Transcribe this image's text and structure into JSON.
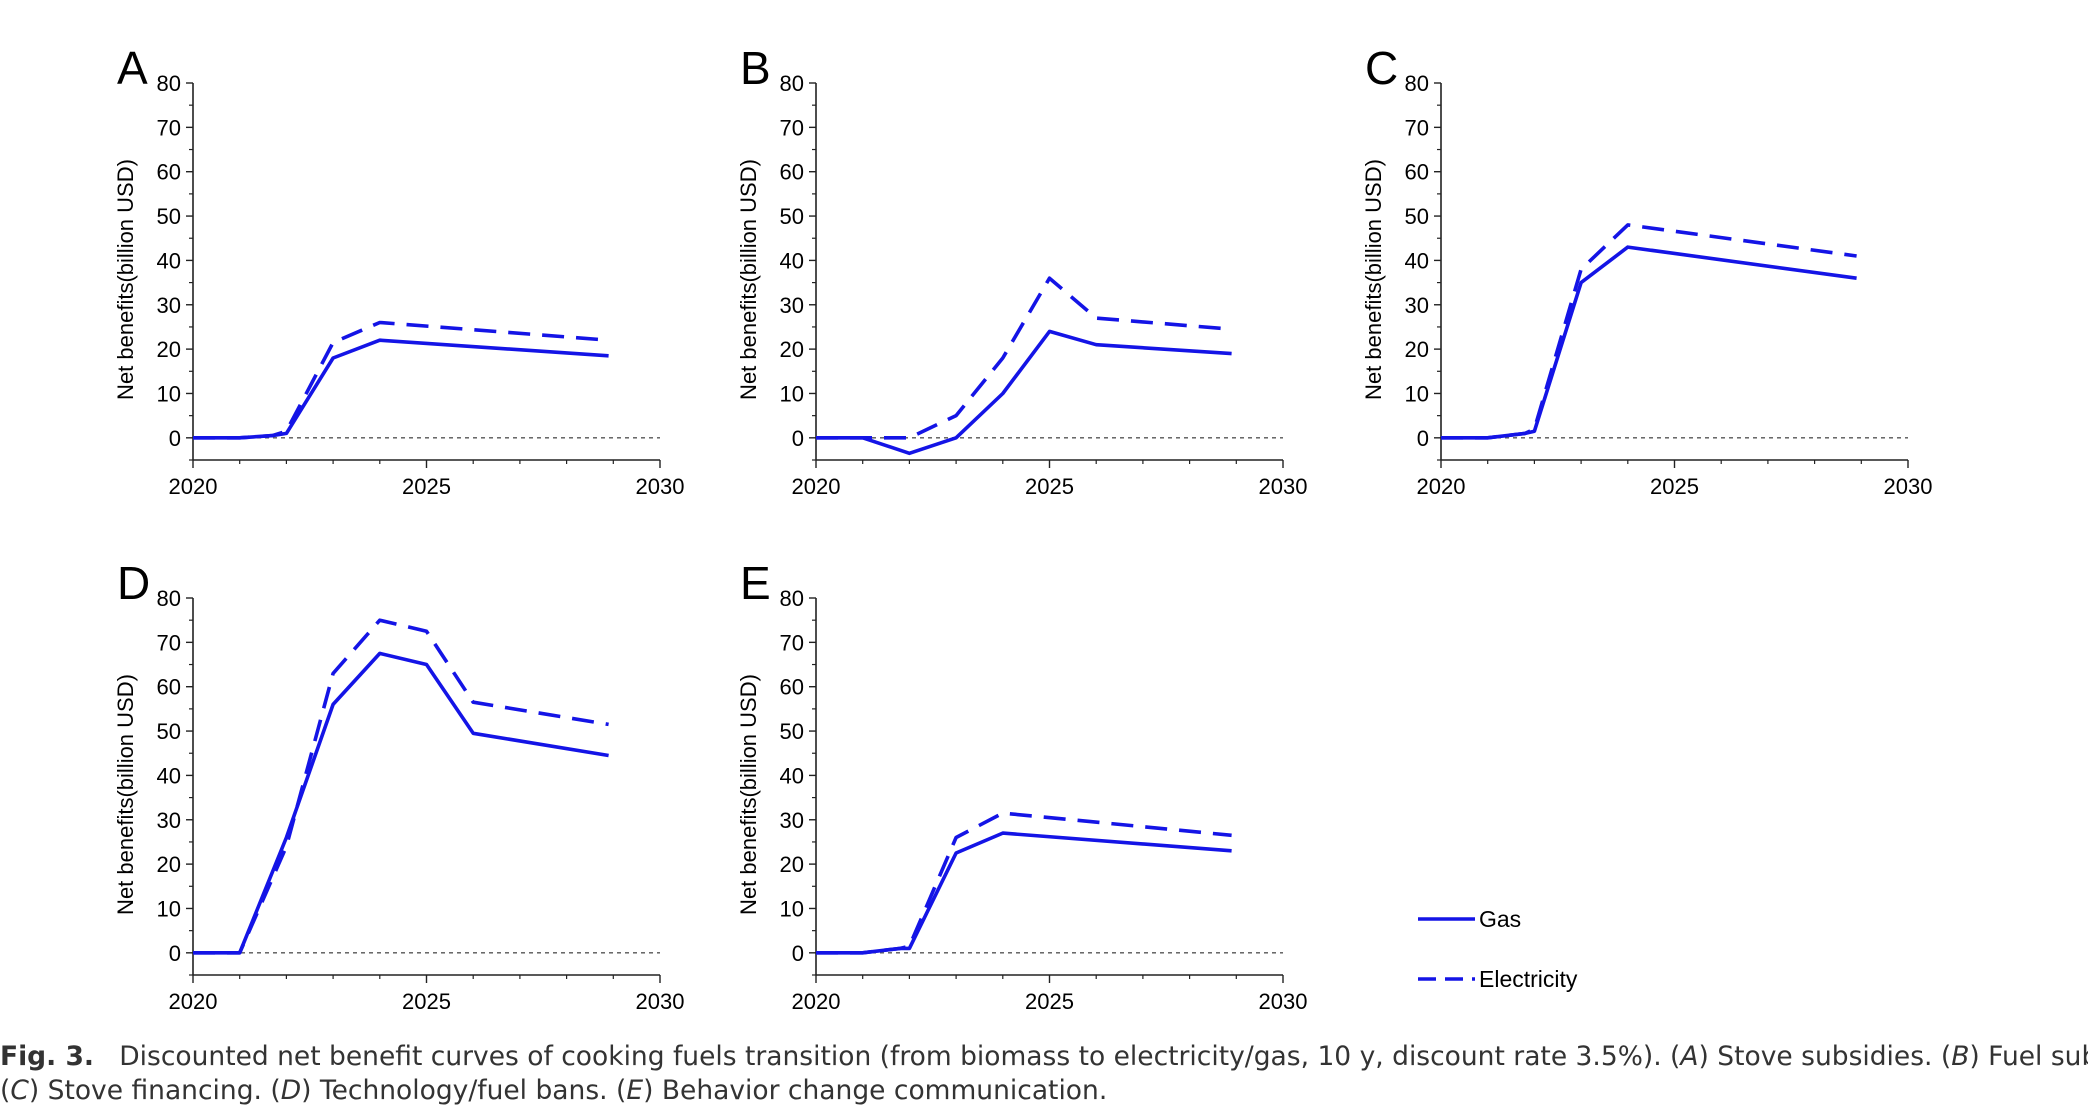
{
  "panels": [
    {
      "letter": "A"
    },
    {
      "letter": "B"
    },
    {
      "letter": "C"
    },
    {
      "letter": "D"
    },
    {
      "letter": "E"
    }
  ],
  "legend": {
    "items": [
      {
        "name": "Gas",
        "dash": false
      },
      {
        "name": "Electricity",
        "dash": true
      }
    ]
  },
  "caption": {
    "figlabel": "Fig. 3.",
    "line1_text": "Discounted net benefit curves of cooking fuels transition (from biomass to electricity/gas, 10 y, discount rate 3.5%). (",
    "a_letter": "A",
    "a_text": ") Stove subsidies. (",
    "b_letter": "B",
    "b_text": ") Fuel subsidies.",
    "line2_open": "(",
    "c_letter": "C",
    "c_text": ") Stove financing. (",
    "d_letter": "D",
    "d_text": ") Technology/fuel bans. (",
    "e_letter": "E",
    "e_text": ") Behavior change communication."
  },
  "colors": {
    "line": "#1414e6",
    "axis": "#222222",
    "zero": "#555555"
  },
  "chart_data": [
    {
      "type": "line",
      "title": "A",
      "xlabel": "",
      "ylabel": "Net benefits(billion USD)",
      "xlim": [
        2020,
        2030
      ],
      "ylim": [
        -5,
        80
      ],
      "xticks": [
        2020,
        2025,
        2030
      ],
      "yticks": [
        0,
        10,
        20,
        30,
        40,
        50,
        60,
        70,
        80
      ],
      "zero_line": true,
      "series": [
        {
          "name": "Gas",
          "x": [
            2020,
            2021,
            2021.7,
            2022,
            2023,
            2024,
            2028.9
          ],
          "y": [
            0,
            0,
            0.5,
            1,
            18,
            22,
            18.5
          ]
        },
        {
          "name": "Electricity",
          "x": [
            2020,
            2021,
            2021.7,
            2022,
            2023,
            2024,
            2028.9
          ],
          "y": [
            0,
            0,
            0.5,
            1.5,
            21.5,
            26,
            22
          ]
        }
      ]
    },
    {
      "type": "line",
      "title": "B",
      "xlabel": "",
      "ylabel": "Net benefits(billion USD)",
      "xlim": [
        2020,
        2030
      ],
      "ylim": [
        -5,
        80
      ],
      "xticks": [
        2020,
        2025,
        2030
      ],
      "yticks": [
        0,
        10,
        20,
        30,
        40,
        50,
        60,
        70,
        80
      ],
      "zero_line": true,
      "series": [
        {
          "name": "Gas",
          "x": [
            2020,
            2021,
            2022,
            2023,
            2024,
            2025,
            2026,
            2028.9
          ],
          "y": [
            0,
            0,
            -3.5,
            0,
            10,
            24,
            21,
            19
          ]
        },
        {
          "name": "Electricity",
          "x": [
            2020,
            2021,
            2022,
            2023,
            2024,
            2025,
            2026,
            2028.9
          ],
          "y": [
            0,
            0,
            0,
            5,
            18,
            36,
            27,
            24.5
          ]
        }
      ]
    },
    {
      "type": "line",
      "title": "C",
      "xlabel": "",
      "ylabel": "Net benefits(billion USD)",
      "xlim": [
        2020,
        2030
      ],
      "ylim": [
        -5,
        80
      ],
      "xticks": [
        2020,
        2025,
        2030
      ],
      "yticks": [
        0,
        10,
        20,
        30,
        40,
        50,
        60,
        70,
        80
      ],
      "zero_line": true,
      "series": [
        {
          "name": "Gas",
          "x": [
            2020,
            2021,
            2021.8,
            2022,
            2023,
            2024,
            2028.9
          ],
          "y": [
            0,
            0,
            1,
            1.5,
            35,
            43,
            36
          ]
        },
        {
          "name": "Electricity",
          "x": [
            2020,
            2021,
            2021.8,
            2022,
            2023,
            2024,
            2028.9
          ],
          "y": [
            0,
            0,
            1,
            2,
            38,
            48,
            41
          ]
        }
      ]
    },
    {
      "type": "line",
      "title": "D",
      "xlabel": "",
      "ylabel": "Net benefits(billion USD)",
      "xlim": [
        2020,
        2030
      ],
      "ylim": [
        -5,
        80
      ],
      "xticks": [
        2020,
        2025,
        2030
      ],
      "yticks": [
        0,
        10,
        20,
        30,
        40,
        50,
        60,
        70,
        80
      ],
      "zero_line": true,
      "series": [
        {
          "name": "Gas",
          "x": [
            2020,
            2021,
            2022,
            2023,
            2024,
            2025,
            2026,
            2028.9
          ],
          "y": [
            0,
            0,
            26,
            56,
            67.5,
            65,
            49.5,
            44.5
          ]
        },
        {
          "name": "Electricity",
          "x": [
            2020,
            2021,
            2022,
            2023,
            2024,
            2025,
            2026,
            2028.9
          ],
          "y": [
            0,
            0,
            24,
            63,
            75,
            72.5,
            56.5,
            51.5
          ]
        }
      ]
    },
    {
      "type": "line",
      "title": "E",
      "xlabel": "",
      "ylabel": "Net benefits(billion USD)",
      "xlim": [
        2020,
        2030
      ],
      "ylim": [
        -5,
        80
      ],
      "xticks": [
        2020,
        2025,
        2030
      ],
      "yticks": [
        0,
        10,
        20,
        30,
        40,
        50,
        60,
        70,
        80
      ],
      "zero_line": true,
      "series": [
        {
          "name": "Gas",
          "x": [
            2020,
            2021,
            2021.8,
            2022,
            2023,
            2024,
            2028.9
          ],
          "y": [
            0,
            0,
            1,
            1,
            22.5,
            27,
            23
          ]
        },
        {
          "name": "Electricity",
          "x": [
            2020,
            2021,
            2021.8,
            2022,
            2023,
            2024,
            2028.9
          ],
          "y": [
            0,
            0,
            1,
            1.5,
            26,
            31.5,
            26.5
          ]
        }
      ]
    }
  ]
}
